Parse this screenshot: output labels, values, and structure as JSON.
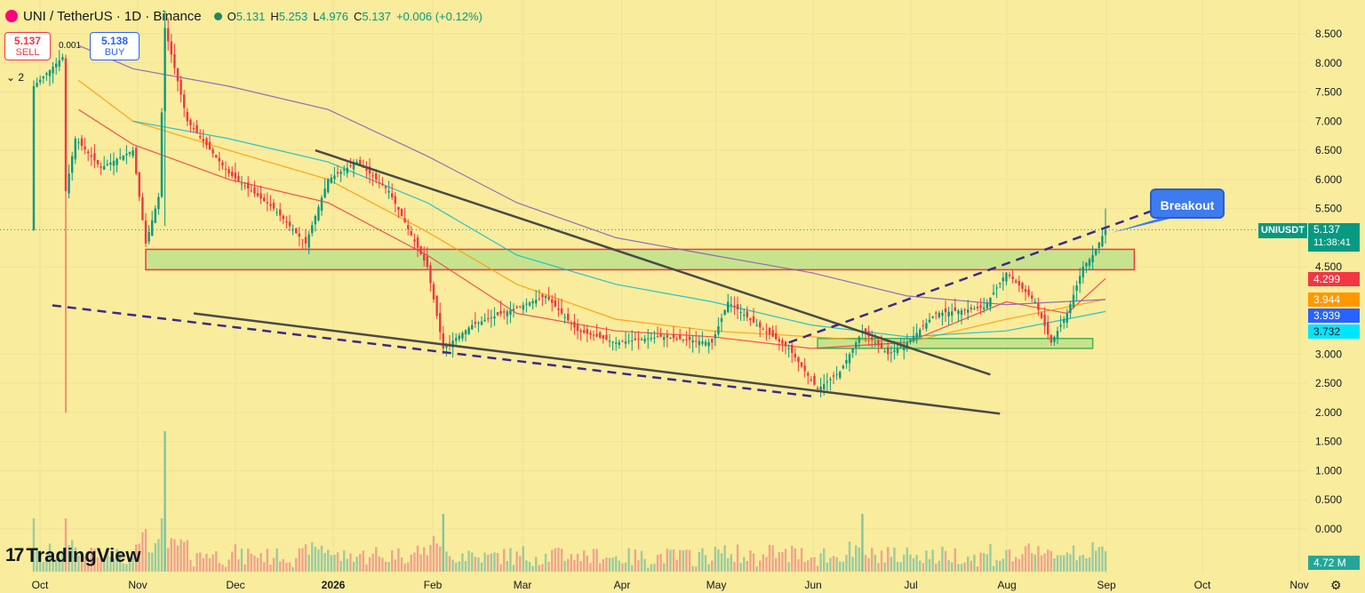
{
  "header": {
    "title": "UNI / TetherUS · 1D · Binance",
    "ohlc": [
      {
        "key": "O",
        "value": "5.131"
      },
      {
        "key": "H",
        "value": "5.253"
      },
      {
        "key": "L",
        "value": "4.976"
      },
      {
        "key": "C",
        "value": "5.137"
      }
    ],
    "change": "+0.006 (+0.12%)"
  },
  "trade": {
    "sell_price": "5.137",
    "sell_label": "SELL",
    "buy_price": "5.138",
    "buy_label": "BUY",
    "spread": "0.001",
    "collapse_label": "⌄ 2"
  },
  "logo": {
    "text": "TradingView"
  },
  "annotation": {
    "breakout_label": "Breakout"
  },
  "price_tags": {
    "symbol": "UNIUSDT",
    "last_price": "5.137",
    "countdown": "11:38:41",
    "ma_values": [
      {
        "value": "4.299",
        "color": "#f23645"
      },
      {
        "value": "3.944",
        "color": "#ff9800"
      },
      {
        "value": "3.939",
        "color": "#2962ff"
      },
      {
        "value": "3.732",
        "color": "#00e5ff"
      }
    ],
    "volume": "4.72 M"
  },
  "chart_data": {
    "type": "candlestick",
    "yaxis": {
      "ticks": [
        "8.500",
        "8.000",
        "7.500",
        "7.000",
        "6.500",
        "6.000",
        "5.500",
        "4.500",
        "3.000",
        "2.500",
        "2.000",
        "1.500",
        "1.000",
        "0.500",
        "0.000"
      ],
      "ylim": [
        -0.3,
        8.9
      ]
    },
    "xaxis": {
      "ticks": [
        "Oct",
        "Nov",
        "Dec",
        "2026",
        "Feb",
        "Mar",
        "Apr",
        "May",
        "Jun",
        "Jul",
        "Aug",
        "Sep",
        "Oct",
        "Nov"
      ]
    },
    "price_path": [
      {
        "x": "Oct 1",
        "y": 7.6
      },
      {
        "x": "Oct 10",
        "y": 8.1
      },
      {
        "x": "Oct 11",
        "y": 5.8
      },
      {
        "x": "Oct 14",
        "y": 6.7
      },
      {
        "x": "Oct 22",
        "y": 6.2
      },
      {
        "x": "Nov 1",
        "y": 6.5
      },
      {
        "x": "Nov 5",
        "y": 4.9
      },
      {
        "x": "Nov 9",
        "y": 5.7
      },
      {
        "x": "Nov 11",
        "y": 8.6
      },
      {
        "x": "Nov 18",
        "y": 7.0
      },
      {
        "x": "Dec 1",
        "y": 6.1
      },
      {
        "x": "Dec 15",
        "y": 5.5
      },
      {
        "x": "Dec 25",
        "y": 4.9
      },
      {
        "x": "Jan 1",
        "y": 6.0
      },
      {
        "x": "Jan 10",
        "y": 6.3
      },
      {
        "x": "Jan 20",
        "y": 5.8
      },
      {
        "x": "Feb 1",
        "y": 4.5
      },
      {
        "x": "Feb 6",
        "y": 3.1
      },
      {
        "x": "Feb 15",
        "y": 3.5
      },
      {
        "x": "Mar 1",
        "y": 3.8
      },
      {
        "x": "Mar 10",
        "y": 4.0
      },
      {
        "x": "Mar 20",
        "y": 3.4
      },
      {
        "x": "Apr 1",
        "y": 3.2
      },
      {
        "x": "Apr 15",
        "y": 3.3
      },
      {
        "x": "May 1",
        "y": 3.2
      },
      {
        "x": "May 6",
        "y": 3.9
      },
      {
        "x": "May 15",
        "y": 3.5
      },
      {
        "x": "May 25",
        "y": 3.1
      },
      {
        "x": "Jun 3",
        "y": 2.4
      },
      {
        "x": "Jun 10",
        "y": 2.7
      },
      {
        "x": "Jun 17",
        "y": 3.4
      },
      {
        "x": "Jun 25",
        "y": 3.0
      },
      {
        "x": "Jul 1",
        "y": 3.2
      },
      {
        "x": "Jul 10",
        "y": 3.7
      },
      {
        "x": "Jul 25",
        "y": 3.8
      },
      {
        "x": "Aug 1",
        "y": 4.4
      },
      {
        "x": "Aug 10",
        "y": 3.9
      },
      {
        "x": "Aug 15",
        "y": 3.2
      },
      {
        "x": "Aug 20",
        "y": 3.7
      },
      {
        "x": "Aug 25",
        "y": 4.5
      },
      {
        "x": "Aug 28",
        "y": 4.7
      },
      {
        "x": "Sep 1",
        "y": 5.137
      }
    ],
    "moving_averages": [
      {
        "color": "#f23645",
        "points": [
          {
            "x": "Oct 15",
            "y": 7.2
          },
          {
            "x": "Nov 1",
            "y": 6.6
          },
          {
            "x": "Dec 1",
            "y": 6.0
          },
          {
            "x": "Jan 1",
            "y": 5.6
          },
          {
            "x": "Feb 1",
            "y": 4.7
          },
          {
            "x": "Mar 1",
            "y": 3.7
          },
          {
            "x": "Apr 1",
            "y": 3.4
          },
          {
            "x": "May 1",
            "y": 3.3
          },
          {
            "x": "Jun 1",
            "y": 3.1
          },
          {
            "x": "Jul 1",
            "y": 3.2
          },
          {
            "x": "Aug 1",
            "y": 3.9
          },
          {
            "x": "Aug 20",
            "y": 3.7
          },
          {
            "x": "Sep 1",
            "y": 4.299
          }
        ]
      },
      {
        "color": "#ff9800",
        "points": [
          {
            "x": "Oct 15",
            "y": 7.7
          },
          {
            "x": "Nov 1",
            "y": 7.0
          },
          {
            "x": "Dec 1",
            "y": 6.5
          },
          {
            "x": "Jan 1",
            "y": 6.0
          },
          {
            "x": "Feb 1",
            "y": 5.1
          },
          {
            "x": "Mar 1",
            "y": 4.2
          },
          {
            "x": "Apr 1",
            "y": 3.6
          },
          {
            "x": "May 1",
            "y": 3.4
          },
          {
            "x": "Jun 1",
            "y": 3.3
          },
          {
            "x": "Jul 1",
            "y": 3.2
          },
          {
            "x": "Aug 1",
            "y": 3.6
          },
          {
            "x": "Sep 1",
            "y": 3.944
          }
        ]
      },
      {
        "color": "#00bcd4",
        "points": [
          {
            "x": "Nov 1",
            "y": 7.0
          },
          {
            "x": "Dec 1",
            "y": 6.7
          },
          {
            "x": "Jan 1",
            "y": 6.3
          },
          {
            "x": "Feb 1",
            "y": 5.6
          },
          {
            "x": "Mar 1",
            "y": 4.7
          },
          {
            "x": "Apr 1",
            "y": 4.2
          },
          {
            "x": "May 1",
            "y": 3.9
          },
          {
            "x": "Jun 1",
            "y": 3.5
          },
          {
            "x": "Jul 1",
            "y": 3.3
          },
          {
            "x": "Aug 1",
            "y": 3.4
          },
          {
            "x": "Sep 1",
            "y": 3.732
          }
        ]
      },
      {
        "color": "#7e57c2",
        "points": [
          {
            "x": "Oct 15",
            "y": 8.3
          },
          {
            "x": "Nov 1",
            "y": 7.9
          },
          {
            "x": "Dec 1",
            "y": 7.6
          },
          {
            "x": "Jan 1",
            "y": 7.2
          },
          {
            "x": "Feb 1",
            "y": 6.4
          },
          {
            "x": "Mar 1",
            "y": 5.6
          },
          {
            "x": "Apr 1",
            "y": 5.0
          },
          {
            "x": "May 1",
            "y": 4.7
          },
          {
            "x": "Jun 1",
            "y": 4.4
          },
          {
            "x": "Jul 1",
            "y": 4.0
          },
          {
            "x": "Aug 1",
            "y": 3.85
          },
          {
            "x": "Sep 1",
            "y": 3.939
          }
        ]
      }
    ],
    "zones": [
      {
        "x1": "Nov 5",
        "x2": "Sep 10",
        "y1": 4.45,
        "y2": 4.8,
        "color": "#f23645"
      },
      {
        "x1": "Jun 3",
        "x2": "Aug 28",
        "y1": 3.1,
        "y2": 3.27,
        "color": "#4caf50"
      }
    ],
    "trendlines": [
      {
        "style": "solid",
        "x1": "Dec 28",
        "y1": 6.5,
        "x2": "Jul 27",
        "y2": 2.65
      },
      {
        "style": "solid",
        "x1": "Nov 20",
        "y1": 3.7,
        "x2": "Jul 30",
        "y2": 1.98
      },
      {
        "style": "dashed",
        "x1": "Jun 1",
        "y1": 2.28,
        "x2": "Oct 5",
        "y2": 3.85
      },
      {
        "style": "dashed",
        "x1": "May 25",
        "y1": 3.2,
        "x2": "Sep 20",
        "y2": 5.55
      }
    ],
    "volume": {
      "last": "4.72 M",
      "peak_date": "Nov 11"
    }
  }
}
